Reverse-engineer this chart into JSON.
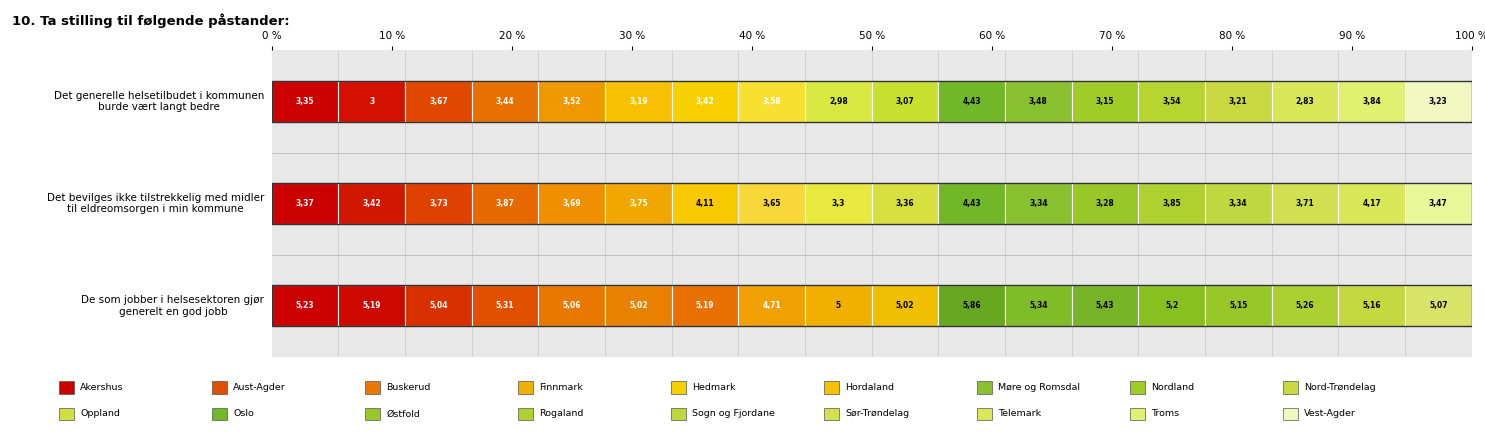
{
  "title": "10. Ta stilling til følgende påstander:",
  "rows": [
    {
      "label": "Det generelle helsetilbudet i kommunen\nburde vært langt bedre",
      "values": [
        3.35,
        3,
        3.67,
        3.44,
        3.52,
        3.19,
        3.42,
        3.58,
        2.98,
        3.07,
        4.43,
        3.48,
        3.15,
        3.54,
        3.21,
        2.83,
        3.84,
        3.23
      ],
      "colors": [
        "#cc0000",
        "#d41000",
        "#e04800",
        "#e87000",
        "#f09800",
        "#f8c000",
        "#f8d000",
        "#f8e030",
        "#d8e840",
        "#c8e030",
        "#70b828",
        "#88c030",
        "#a0cc28",
        "#b8d430",
        "#c8d840",
        "#d8e858",
        "#e0f070",
        "#f0f8c0"
      ],
      "text_white": [
        true,
        true,
        true,
        true,
        true,
        true,
        true,
        true,
        false,
        false,
        false,
        false,
        false,
        false,
        false,
        false,
        false,
        false
      ]
    },
    {
      "label": "Det bevilges ikke tilstrekkelig med midler\ntil eldreomsorgen i min kommune",
      "values": [
        3.37,
        3.42,
        3.73,
        3.87,
        3.69,
        3.75,
        4.11,
        3.65,
        3.3,
        3.36,
        4.43,
        3.34,
        3.28,
        3.85,
        3.34,
        3.71,
        4.17,
        3.47
      ],
      "colors": [
        "#cc0000",
        "#d01800",
        "#e04000",
        "#e86800",
        "#f09000",
        "#f0a800",
        "#f8c800",
        "#f8d838",
        "#e8e840",
        "#d8e040",
        "#70b828",
        "#88c030",
        "#98c828",
        "#b0d030",
        "#c0d840",
        "#d0e050",
        "#d8e858",
        "#e8f898"
      ],
      "text_white": [
        true,
        true,
        true,
        true,
        true,
        true,
        false,
        false,
        false,
        false,
        false,
        false,
        false,
        false,
        false,
        false,
        false,
        false
      ]
    },
    {
      "label": "De som jobber i helsesektoren gjør\ngenerelt en god jobb",
      "values": [
        5.23,
        5.19,
        5.04,
        5.31,
        5.06,
        5.02,
        5.19,
        4.71,
        5,
        5.02,
        5.86,
        5.34,
        5.43,
        5.2,
        5.15,
        5.26,
        5.16,
        5.07
      ],
      "colors": [
        "#cc0000",
        "#cc0800",
        "#d83000",
        "#e05000",
        "#e87800",
        "#e88000",
        "#e87000",
        "#f0a000",
        "#f0b000",
        "#f0c000",
        "#68a820",
        "#80bc28",
        "#78b428",
        "#88c020",
        "#98c828",
        "#acd030",
        "#c4d840",
        "#d8e468"
      ],
      "text_white": [
        true,
        true,
        true,
        true,
        true,
        true,
        true,
        true,
        false,
        false,
        false,
        false,
        false,
        false,
        false,
        false,
        false,
        false
      ]
    }
  ],
  "legend": [
    {
      "name": "Akershus",
      "color": "#cc0000"
    },
    {
      "name": "Aust-Agder",
      "color": "#e05000"
    },
    {
      "name": "Buskerud",
      "color": "#e87800"
    },
    {
      "name": "Finnmark",
      "color": "#f0b000"
    },
    {
      "name": "Hedmark",
      "color": "#f8d000"
    },
    {
      "name": "Hordaland",
      "color": "#f8c000"
    },
    {
      "name": "Møre og Romsdal",
      "color": "#88c030"
    },
    {
      "name": "Nordland",
      "color": "#a0cc28"
    },
    {
      "name": "Nord-Trøndelag",
      "color": "#c8d840"
    },
    {
      "name": "Oppland",
      "color": "#d0e040"
    },
    {
      "name": "Oslo",
      "color": "#70b828"
    },
    {
      "name": "Østfold",
      "color": "#98c828"
    },
    {
      "name": "Rogaland",
      "color": "#b0d030"
    },
    {
      "name": "Sogn og Fjordane",
      "color": "#c0d840"
    },
    {
      "name": "Sør-Trøndelag",
      "color": "#d0e050"
    },
    {
      "name": "Telemark",
      "color": "#d8e858"
    },
    {
      "name": "Troms",
      "color": "#e0f070"
    },
    {
      "name": "Vest-Agder",
      "color": "#f0f8c0"
    }
  ],
  "n_cols": 18,
  "chart_bg": "#e8e8e8",
  "bar_bg": "#e0e0e0"
}
